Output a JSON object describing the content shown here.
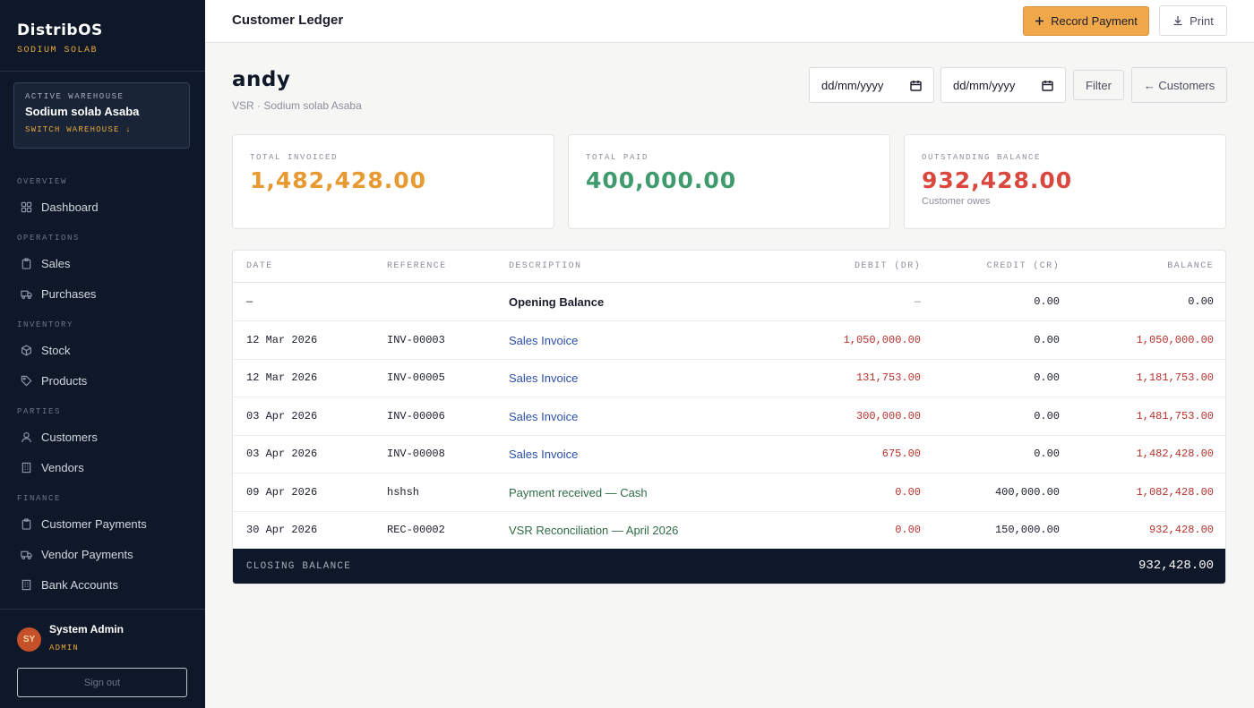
{
  "app": {
    "brand": "DistribOS",
    "tenant": "SODIUM SOLAB"
  },
  "warehouse": {
    "label": "ACTIVE WAREHOUSE",
    "name": "Sodium solab Asaba",
    "switch_label": "SWITCH WAREHOUSE ↓"
  },
  "nav": {
    "sections": [
      "OVERVIEW",
      "OPERATIONS",
      "INVENTORY",
      "PARTIES",
      "FINANCE"
    ],
    "items": [
      {
        "label": "Dashboard",
        "icon": "grid-icon"
      },
      {
        "label": "Sales",
        "icon": "clipboard-icon"
      },
      {
        "label": "Purchases",
        "icon": "truck-icon"
      },
      {
        "label": "Stock",
        "icon": "box-icon"
      },
      {
        "label": "Products",
        "icon": "tag-icon"
      },
      {
        "label": "Customers",
        "icon": "user-icon"
      },
      {
        "label": "Vendors",
        "icon": "building-icon"
      },
      {
        "label": "Customer Payments",
        "icon": "clipboard-icon"
      },
      {
        "label": "Vendor Payments",
        "icon": "truck-icon"
      },
      {
        "label": "Bank Accounts",
        "icon": "building-icon"
      }
    ]
  },
  "user": {
    "initials": "SY",
    "name": "System Admin",
    "role": "ADMIN",
    "signout_label": "Sign out"
  },
  "header": {
    "title": "Customer Ledger",
    "record_payment_label": "Record Payment",
    "print_label": "Print"
  },
  "customer": {
    "name": "andy",
    "subtitle": "VSR · Sodium solab Asaba"
  },
  "filters": {
    "from_placeholder": "dd/mm/yyyy",
    "to_placeholder": "dd/mm/yyyy",
    "filter_label": "Filter",
    "back_label": "← Customers"
  },
  "stats": {
    "total_invoiced": {
      "label": "TOTAL INVOICED",
      "value": "1,482,428.00"
    },
    "total_paid": {
      "label": "TOTAL PAID",
      "value": "400,000.00"
    },
    "outstanding": {
      "label": "OUTSTANDING BALANCE",
      "value": "932,428.00",
      "note": "Customer owes"
    }
  },
  "table": {
    "columns": [
      "DATE",
      "REFERENCE",
      "DESCRIPTION",
      "DEBIT (DR)",
      "CREDIT (CR)",
      "BALANCE"
    ],
    "rows": [
      {
        "date": "—",
        "ref": "",
        "desc": "Opening Balance",
        "debit": "—",
        "credit": "0.00",
        "balance": "0.00",
        "kind": "opening"
      },
      {
        "date": "12 Mar 2026",
        "ref": "INV-00003",
        "desc": "Sales Invoice",
        "debit": "1,050,000.00",
        "credit": "0.00",
        "balance": "1,050,000.00",
        "kind": "invoice"
      },
      {
        "date": "12 Mar 2026",
        "ref": "INV-00005",
        "desc": "Sales Invoice",
        "debit": "131,753.00",
        "credit": "0.00",
        "balance": "1,181,753.00",
        "kind": "invoice"
      },
      {
        "date": "03 Apr 2026",
        "ref": "INV-00006",
        "desc": "Sales Invoice",
        "debit": "300,000.00",
        "credit": "0.00",
        "balance": "1,481,753.00",
        "kind": "invoice"
      },
      {
        "date": "03 Apr 2026",
        "ref": "INV-00008",
        "desc": "Sales Invoice",
        "debit": "675.00",
        "credit": "0.00",
        "balance": "1,482,428.00",
        "kind": "invoice"
      },
      {
        "date": "09 Apr 2026",
        "ref": "hshsh",
        "desc": "Payment received — Cash",
        "debit": "0.00",
        "credit": "400,000.00",
        "balance": "1,082,428.00",
        "kind": "payment"
      },
      {
        "date": "30 Apr 2026",
        "ref": "REC-00002",
        "desc": "VSR Reconciliation — April 2026",
        "debit": "0.00",
        "credit": "150,000.00",
        "balance": "932,428.00",
        "kind": "payment"
      }
    ],
    "closing_label": "CLOSING BALANCE",
    "closing_value": "932,428.00"
  },
  "colors": {
    "accent": "#f0a84a",
    "sidebar": "#0f1829",
    "invoiced": "#e89a32",
    "paid": "#3f9a6e",
    "outstanding": "#d9473f",
    "debit": "#b8312b",
    "link": "#2b4fa8",
    "payment": "#2e6b45"
  }
}
